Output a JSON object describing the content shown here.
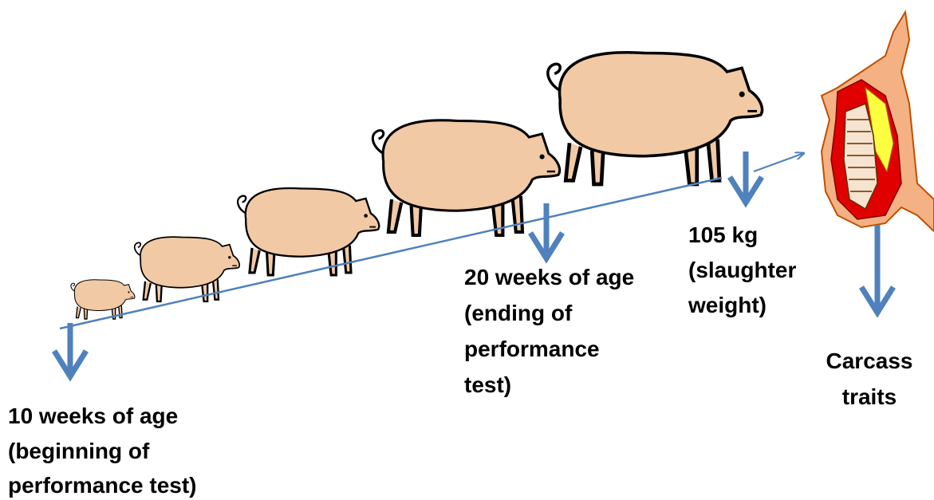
{
  "labels": [
    {
      "lines": [
        "10 weeks of age",
        "(beginning of",
        "performance test)"
      ]
    },
    {
      "lines": [
        "20 weeks of age",
        "(ending of",
        "performance",
        "test)"
      ]
    },
    {
      "lines": [
        "105 kg",
        "(slaughter",
        "weight)"
      ]
    },
    {
      "lines": [
        "Carcass",
        "traits"
      ]
    }
  ]
}
